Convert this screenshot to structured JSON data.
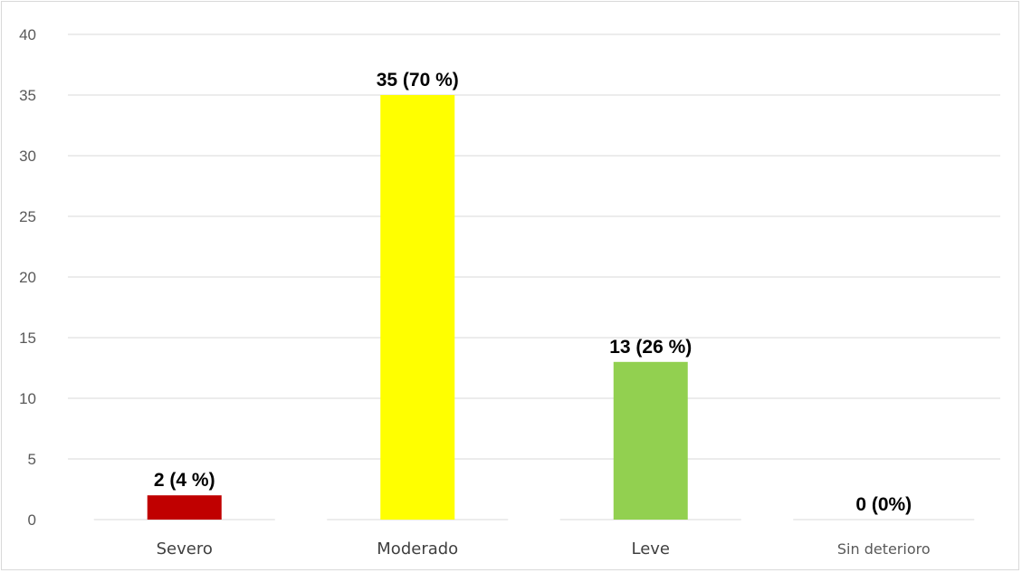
{
  "chart_data": {
    "type": "bar",
    "categories": [
      "Severo",
      "Moderado",
      "Leve",
      "Sin deterioro"
    ],
    "values": [
      2,
      35,
      13,
      0
    ],
    "data_labels": [
      "2 (4 %)",
      "35 (70 %)",
      "13 (26 %)",
      "0 (0%)"
    ],
    "colors": [
      "#c00000",
      "#ffff00",
      "#92d050",
      "#ffffff"
    ],
    "ylim": [
      0,
      40
    ],
    "yticks": [
      0,
      5,
      10,
      15,
      20,
      25,
      30,
      35,
      40
    ],
    "grid": true,
    "legend": "none",
    "title": "",
    "xlabel": "",
    "ylabel": ""
  }
}
